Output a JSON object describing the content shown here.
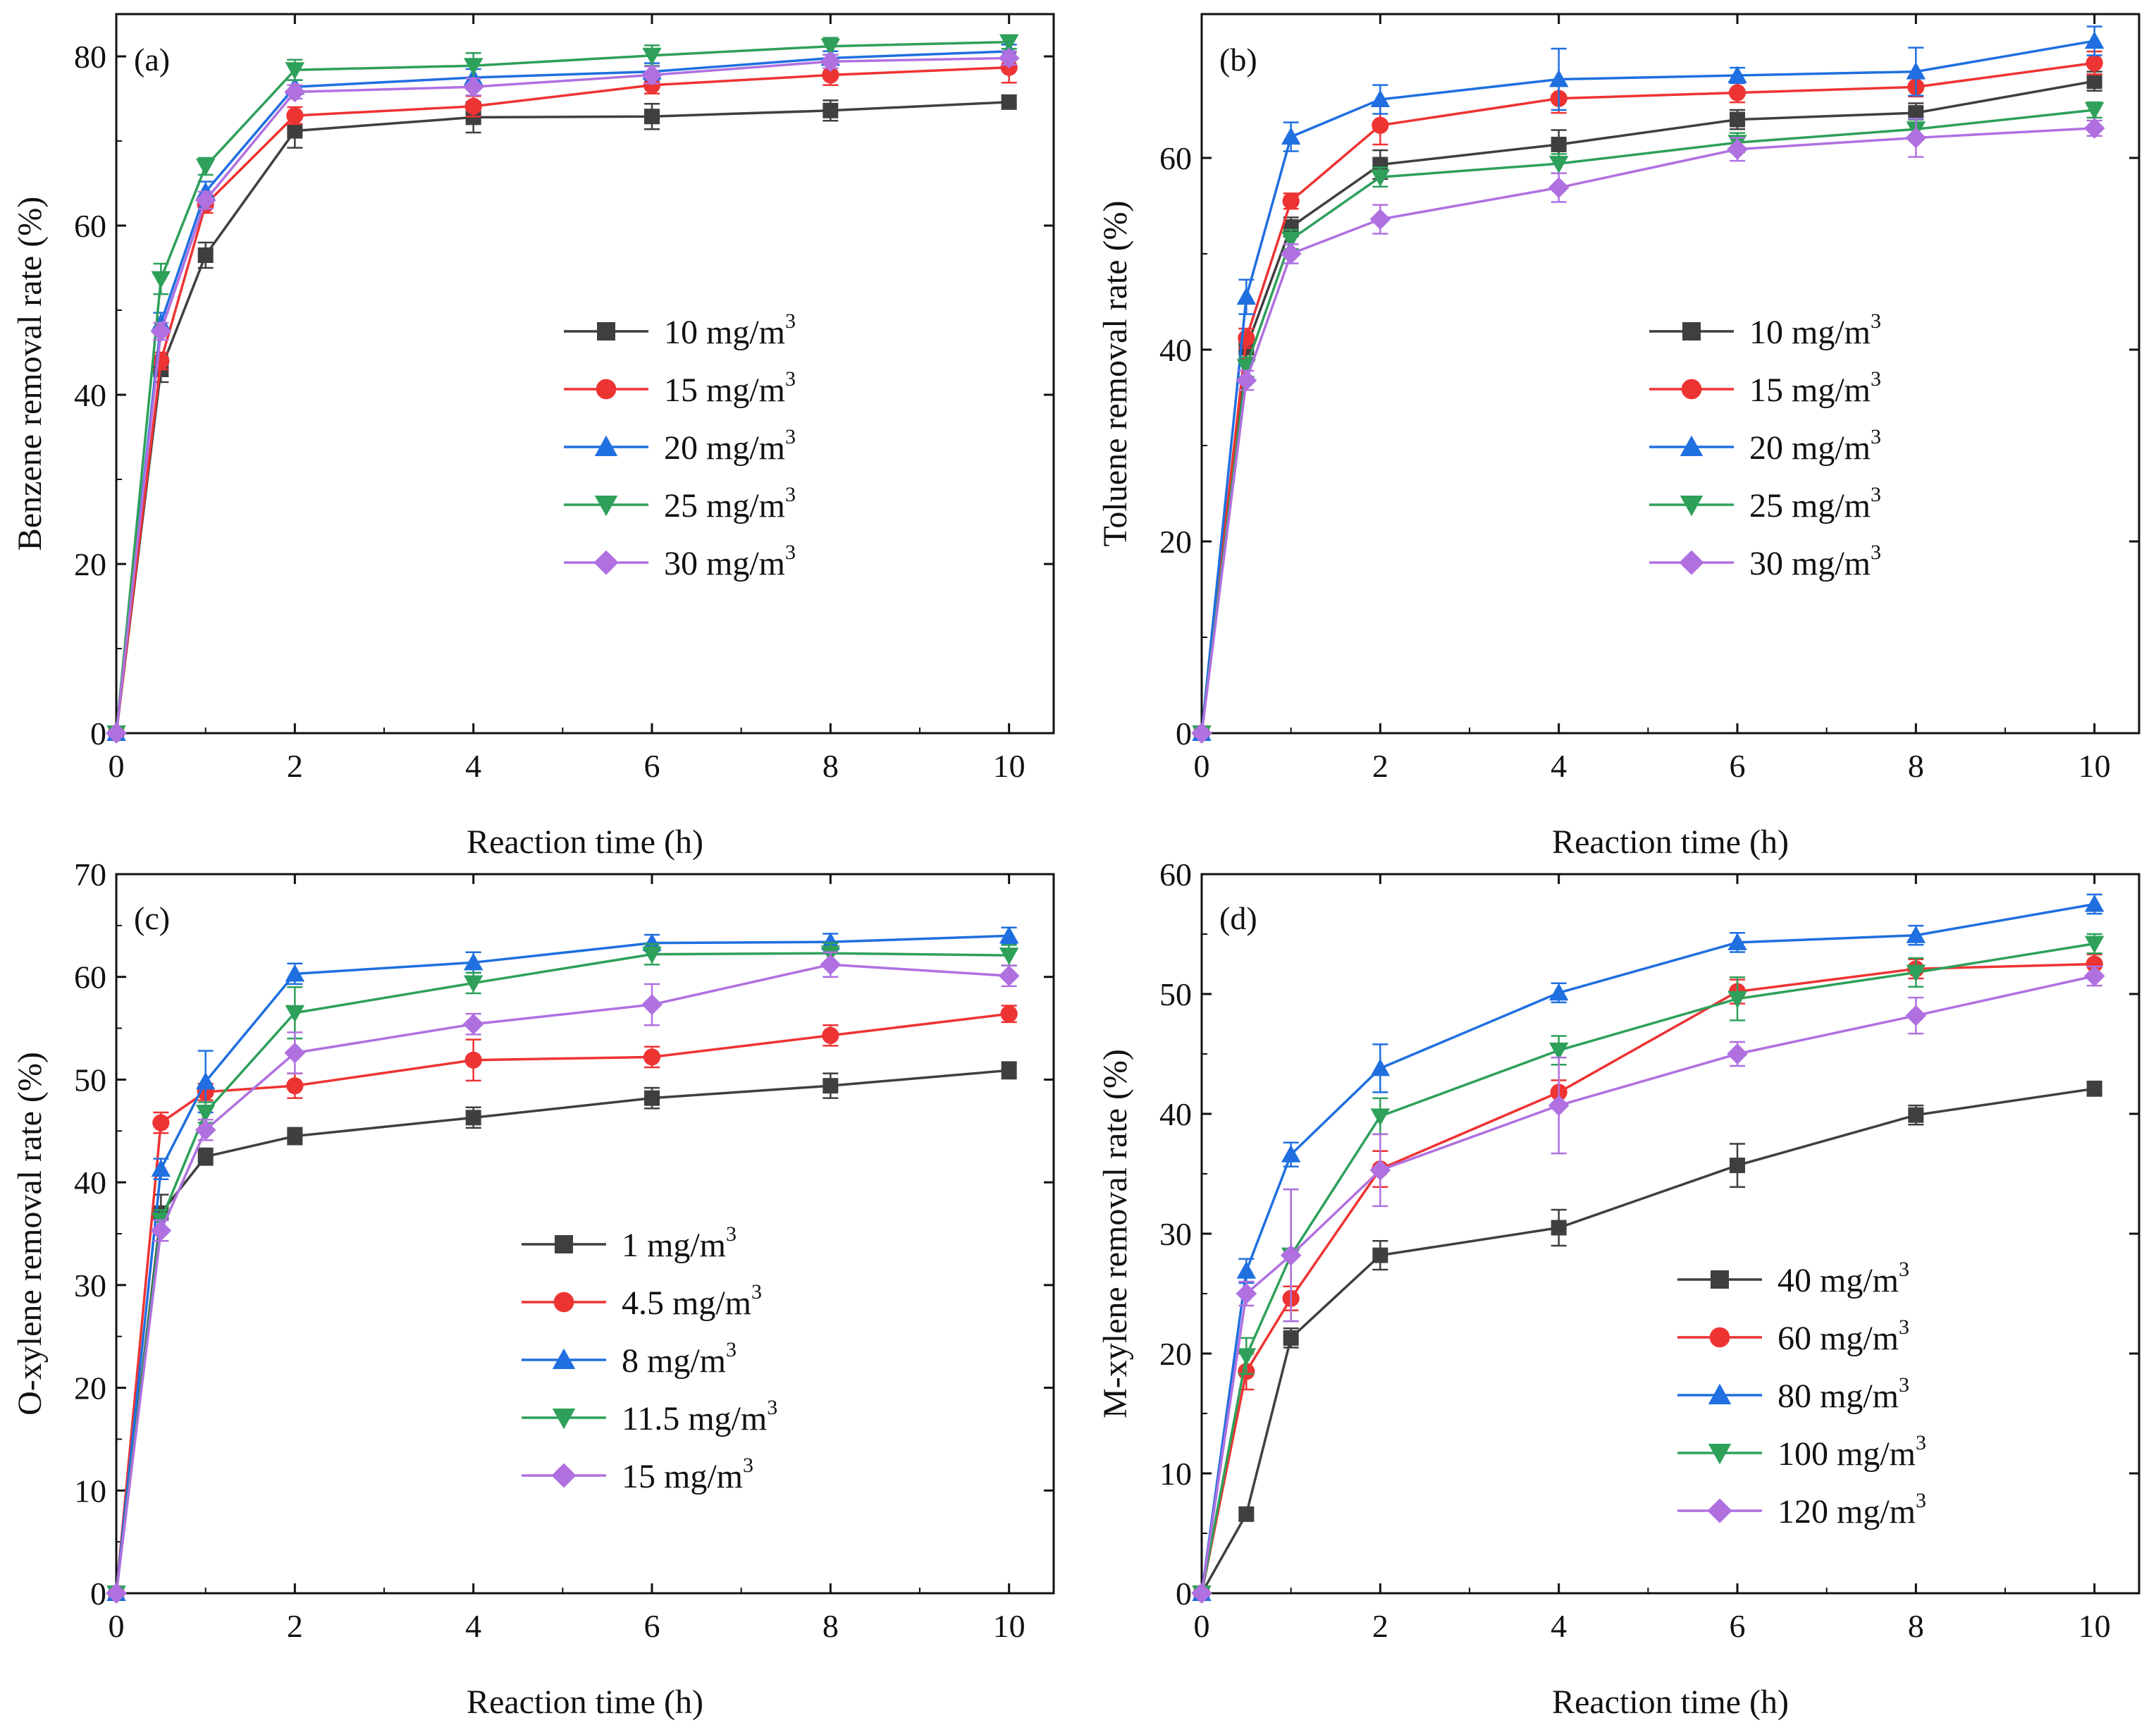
{
  "panels": [
    {
      "id": "a",
      "panel_label": "(a)",
      "xlabel": "Reaction time (h)",
      "ylabel": "Benzene removal rate (%)",
      "legend_position": "center-right"
    },
    {
      "id": "b",
      "panel_label": "(b)",
      "xlabel": "Reaction time (h)",
      "ylabel": "Toluene removal rate (%)",
      "legend_position": "center-right"
    },
    {
      "id": "c",
      "panel_label": "(c)",
      "xlabel": "Reaction time (h)",
      "ylabel": "O-xylene removal rate (%)",
      "legend_position": "center-right"
    },
    {
      "id": "d",
      "panel_label": "(d)",
      "xlabel": "Reaction time (h)",
      "ylabel": "M-xylene removal rate (%)",
      "legend_position": "bottom-right"
    }
  ],
  "series_styles": [
    {
      "color": "#3f3f3f",
      "marker": "square"
    },
    {
      "color": "#ee3333",
      "marker": "circle"
    },
    {
      "color": "#1f6fe0",
      "marker": "triangle-up"
    },
    {
      "color": "#2ea05a",
      "marker": "triangle-down"
    },
    {
      "color": "#b070e0",
      "marker": "diamond"
    }
  ],
  "chart_data": [
    {
      "type": "line",
      "title": "(a)",
      "xlabel": "Reaction time (h)",
      "ylabel": "Benzene removal rate (%)",
      "xlim": [
        0,
        10.5
      ],
      "ylim": [
        0,
        85
      ],
      "xticks": [
        0,
        2,
        4,
        6,
        8,
        10
      ],
      "yticks": [
        0,
        20,
        40,
        60,
        80
      ],
      "x": [
        0,
        0.5,
        1,
        2,
        4,
        6,
        8,
        10
      ],
      "series": [
        {
          "name": "10 mg/m",
          "unit_exp": "3",
          "values": [
            0,
            43,
            56.5,
            71.2,
            72.8,
            72.9,
            73.6,
            74.6
          ],
          "errors": [
            0,
            1.5,
            1.5,
            2.0,
            1.8,
            1.5,
            1.2,
            0.8
          ]
        },
        {
          "name": "15 mg/m",
          "unit_exp": "3",
          "values": [
            0,
            44,
            62.5,
            73,
            74.1,
            76.6,
            77.8,
            78.7
          ],
          "errors": [
            0,
            1.0,
            1.0,
            1.0,
            1.2,
            1.0,
            1.2,
            1.8
          ]
        },
        {
          "name": "20 mg/m",
          "unit_exp": "3",
          "values": [
            0,
            48.5,
            64,
            76.4,
            77.5,
            78.2,
            79.8,
            80.6
          ],
          "errors": [
            0,
            1.2,
            1.2,
            0.8,
            1.0,
            1.0,
            0.8,
            0.8
          ]
        },
        {
          "name": "25 mg/m",
          "unit_exp": "3",
          "values": [
            0,
            53.7,
            67,
            78.4,
            78.9,
            80.1,
            81.2,
            81.7
          ],
          "errors": [
            0,
            1.8,
            1.0,
            1.2,
            1.5,
            1.2,
            1.0,
            0.8
          ]
        },
        {
          "name": "30 mg/m",
          "unit_exp": "3",
          "values": [
            0,
            47.5,
            63,
            75.8,
            76.4,
            77.8,
            79.4,
            79.8
          ],
          "errors": [
            0,
            1.0,
            1.0,
            0.8,
            1.0,
            1.0,
            0.8,
            0.8
          ]
        }
      ]
    },
    {
      "type": "line",
      "title": "(b)",
      "xlabel": "Reaction time (h)",
      "ylabel": "Toluene removal rate (%)",
      "xlim": [
        0,
        10.5
      ],
      "ylim": [
        0,
        75
      ],
      "xticks": [
        0,
        2,
        4,
        6,
        8,
        10
      ],
      "yticks": [
        0,
        20,
        40,
        60
      ],
      "x": [
        0,
        0.5,
        1,
        2,
        4,
        6,
        8,
        10
      ],
      "series": [
        {
          "name": "10 mg/m",
          "unit_exp": "3",
          "values": [
            0,
            40.2,
            52.8,
            59.3,
            61.4,
            64,
            64.7,
            68
          ],
          "errors": [
            0,
            1.2,
            1.0,
            1.5,
            1.5,
            1.0,
            1.0,
            1.0
          ]
        },
        {
          "name": "15 mg/m",
          "unit_exp": "3",
          "values": [
            0,
            41.2,
            55.5,
            63.4,
            66.2,
            66.8,
            67.4,
            69.9
          ],
          "errors": [
            0,
            1.0,
            0.8,
            2.0,
            1.5,
            1.0,
            1.0,
            1.2
          ]
        },
        {
          "name": "20 mg/m",
          "unit_exp": "3",
          "values": [
            0,
            45.5,
            62.2,
            66.1,
            68.2,
            68.6,
            69,
            72.2
          ],
          "errors": [
            0,
            1.8,
            1.5,
            1.5,
            3.2,
            0.8,
            2.5,
            1.5
          ]
        },
        {
          "name": "25 mg/m",
          "unit_exp": "3",
          "values": [
            0,
            38.2,
            51.5,
            58,
            59.4,
            61.6,
            63,
            65
          ],
          "errors": [
            0,
            1.0,
            1.0,
            1.0,
            1.0,
            1.0,
            1.0,
            0.8
          ]
        },
        {
          "name": "30 mg/m",
          "unit_exp": "3",
          "values": [
            0,
            36.8,
            50,
            53.6,
            56.9,
            60.9,
            62.1,
            63.1
          ],
          "errors": [
            0,
            1.0,
            1.0,
            1.5,
            1.5,
            1.2,
            2.0,
            0.8
          ]
        }
      ]
    },
    {
      "type": "line",
      "title": "(c)",
      "xlabel": "Reaction time (h)",
      "ylabel": "O-xylene removal rate (%)",
      "xlim": [
        0,
        10.5
      ],
      "ylim": [
        0,
        70
      ],
      "xticks": [
        0,
        2,
        4,
        6,
        8,
        10
      ],
      "yticks": [
        0,
        10,
        20,
        30,
        40,
        50,
        60,
        70
      ],
      "x": [
        0,
        0.5,
        1,
        2,
        4,
        6,
        8,
        10
      ],
      "series": [
        {
          "name": "1 mg/m",
          "unit_exp": "3",
          "values": [
            0,
            37,
            42.5,
            44.5,
            46.3,
            48.2,
            49.4,
            50.9
          ],
          "errors": [
            0,
            1.8,
            0.8,
            0.8,
            1.0,
            1.0,
            1.2,
            0.8
          ]
        },
        {
          "name": "4.5 mg/m",
          "unit_exp": "3",
          "values": [
            0,
            45.8,
            48.8,
            49.4,
            51.9,
            52.2,
            54.3,
            56.4
          ],
          "errors": [
            0,
            1.0,
            0.8,
            1.2,
            2.0,
            1.0,
            1.0,
            0.8
          ]
        },
        {
          "name": "8 mg/m",
          "unit_exp": "3",
          "values": [
            0,
            41.3,
            49.8,
            60.3,
            61.4,
            63.3,
            63.4,
            64
          ],
          "errors": [
            0,
            1.0,
            3.0,
            1.0,
            1.0,
            0.8,
            0.8,
            0.8
          ]
        },
        {
          "name": "11.5 mg/m",
          "unit_exp": "3",
          "values": [
            0,
            36.3,
            46.8,
            56.5,
            59.4,
            62.2,
            62.3,
            62.1
          ],
          "errors": [
            0,
            1.0,
            1.0,
            2.5,
            1.0,
            1.0,
            1.0,
            1.0
          ]
        },
        {
          "name": "15 mg/m",
          "unit_exp": "3",
          "values": [
            0,
            35.3,
            45.1,
            52.6,
            55.4,
            57.3,
            61.2,
            60.1
          ],
          "errors": [
            0,
            1.0,
            1.0,
            2.0,
            1.0,
            2.0,
            1.2,
            1.0
          ]
        }
      ]
    },
    {
      "type": "line",
      "title": "(d)",
      "xlabel": "Reaction time (h)",
      "ylabel": "M-xylene removal rate (%)",
      "xlim": [
        0,
        10.5
      ],
      "ylim": [
        0,
        60
      ],
      "xticks": [
        0,
        2,
        4,
        6,
        8,
        10
      ],
      "yticks": [
        0,
        10,
        20,
        30,
        40,
        50,
        60
      ],
      "x": [
        0,
        0.5,
        1,
        2,
        4,
        6,
        8,
        10
      ],
      "series": [
        {
          "name": "40 mg/m",
          "unit_exp": "3",
          "values": [
            0,
            6.6,
            21.3,
            28.2,
            30.5,
            35.7,
            39.9,
            42.1
          ],
          "errors": [
            0,
            0.5,
            0.8,
            1.2,
            1.5,
            1.8,
            0.8,
            0.6
          ]
        },
        {
          "name": "60 mg/m",
          "unit_exp": "3",
          "values": [
            0,
            18.5,
            24.6,
            35.4,
            41.8,
            50.2,
            52.1,
            52.5
          ],
          "errors": [
            0,
            1.5,
            1.0,
            1.5,
            1.0,
            1.0,
            0.8,
            0.8
          ]
        },
        {
          "name": "80 mg/m",
          "unit_exp": "3",
          "values": [
            0,
            26.9,
            36.6,
            43.8,
            50.1,
            54.3,
            54.9,
            57.5
          ],
          "errors": [
            0,
            1.0,
            1.0,
            2.0,
            0.8,
            0.8,
            0.8,
            0.8
          ]
        },
        {
          "name": "100 mg/m",
          "unit_exp": "3",
          "values": [
            0,
            19.8,
            28.2,
            39.8,
            45.3,
            49.6,
            51.8,
            54.2
          ],
          "errors": [
            0,
            1.5,
            5.5,
            1.5,
            1.2,
            1.8,
            1.2,
            0.8
          ]
        },
        {
          "name": "120 mg/m",
          "unit_exp": "3",
          "values": [
            0,
            25,
            28.2,
            35.3,
            40.7,
            45,
            48.2,
            51.5
          ],
          "errors": [
            0,
            1.0,
            5.5,
            3.0,
            4.0,
            1.0,
            1.5,
            0.8
          ]
        }
      ]
    }
  ]
}
